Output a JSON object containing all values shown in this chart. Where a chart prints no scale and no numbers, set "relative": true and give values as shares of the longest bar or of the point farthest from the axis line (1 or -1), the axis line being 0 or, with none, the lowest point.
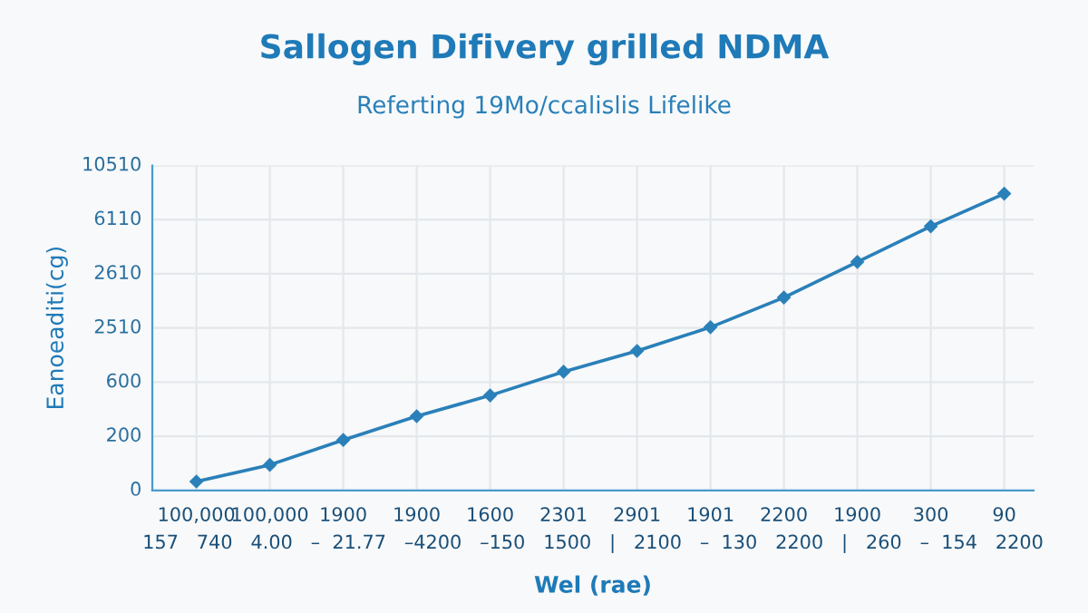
{
  "chart_data": {
    "type": "line",
    "title": "Sallogen Difivery grilled NDMA",
    "subtitle": "Referting 19Mo/ccalislis Lifelike",
    "xlabel": "Wel (rae)",
    "ylabel": "Eanoeaditi(cg)",
    "annotations": [
      "157   740   4.00   –  21.77   –4200   –150   1500   |   2100   –  130   2200   |   260   –  154   2200",
      "0",
      "200",
      "600",
      "2510",
      "2610",
      "6110",
      "10510"
    ],
    "categories": [
      "100,000",
      "100,000",
      "1900",
      "1900",
      "1600",
      "2301",
      "2901",
      "1901",
      "2200",
      "1900",
      "300",
      "90"
    ],
    "relative": true,
    "series": [
      {
        "color": "#2a80b9",
        "values": [
          0.03,
          0.086,
          0.17,
          0.25,
          0.32,
          0.4,
          0.47,
          0.55,
          0.65,
          0.77,
          0.89,
          1
        ]
      }
    ],
    "grid": true,
    "marker": "diamond",
    "line_style": "solid"
  }
}
